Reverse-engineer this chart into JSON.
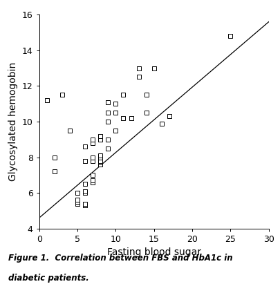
{
  "x_data": [
    1,
    2,
    2,
    3,
    4,
    5,
    5,
    5,
    5,
    5,
    5,
    6,
    6,
    6,
    6,
    6,
    6,
    6,
    6,
    7,
    7,
    7,
    7,
    7,
    7,
    7,
    7,
    8,
    8,
    8,
    8,
    8,
    8,
    8,
    8,
    8,
    9,
    9,
    9,
    9,
    9,
    10,
    10,
    10,
    11,
    11,
    12,
    13,
    13,
    14,
    14,
    15,
    16,
    17,
    25
  ],
  "y_data": [
    11.2,
    7.2,
    8.0,
    11.5,
    9.5,
    5.4,
    5.5,
    5.5,
    5.6,
    6.0,
    6.0,
    5.3,
    5.4,
    6.0,
    6.1,
    6.1,
    6.5,
    7.8,
    8.6,
    6.6,
    6.6,
    6.7,
    7.0,
    7.8,
    8.0,
    8.8,
    9.0,
    7.6,
    7.7,
    7.8,
    7.8,
    8.0,
    8.0,
    8.1,
    9.0,
    9.2,
    8.5,
    9.0,
    10.0,
    10.5,
    11.1,
    9.5,
    10.5,
    11.0,
    10.2,
    11.5,
    10.2,
    13.0,
    12.5,
    10.5,
    11.5,
    13.0,
    9.9,
    10.3,
    14.8
  ],
  "line_x": [
    0,
    30
  ],
  "line_y": [
    4.6,
    15.6
  ],
  "xlim": [
    0,
    30
  ],
  "ylim": [
    4,
    16
  ],
  "xticks": [
    0,
    5,
    10,
    15,
    20,
    25,
    30
  ],
  "yticks": [
    4,
    6,
    8,
    10,
    12,
    14,
    16
  ],
  "xlabel": "Fasting blood sugar",
  "ylabel": "Glycosylated hemogobin",
  "marker_facecolor": "white",
  "marker_edgecolor": "#000000",
  "marker_size": 18,
  "marker_linewidth": 0.7,
  "line_color": "#000000",
  "line_width": 0.9,
  "tick_labelsize": 9,
  "axis_labelsize": 10,
  "caption_line1": "Figure 1.  Correlation between FBS and HbA1c in",
  "caption_line2": "diabetic patients.",
  "bg_color": "#ffffff",
  "spine_color": "#000000"
}
